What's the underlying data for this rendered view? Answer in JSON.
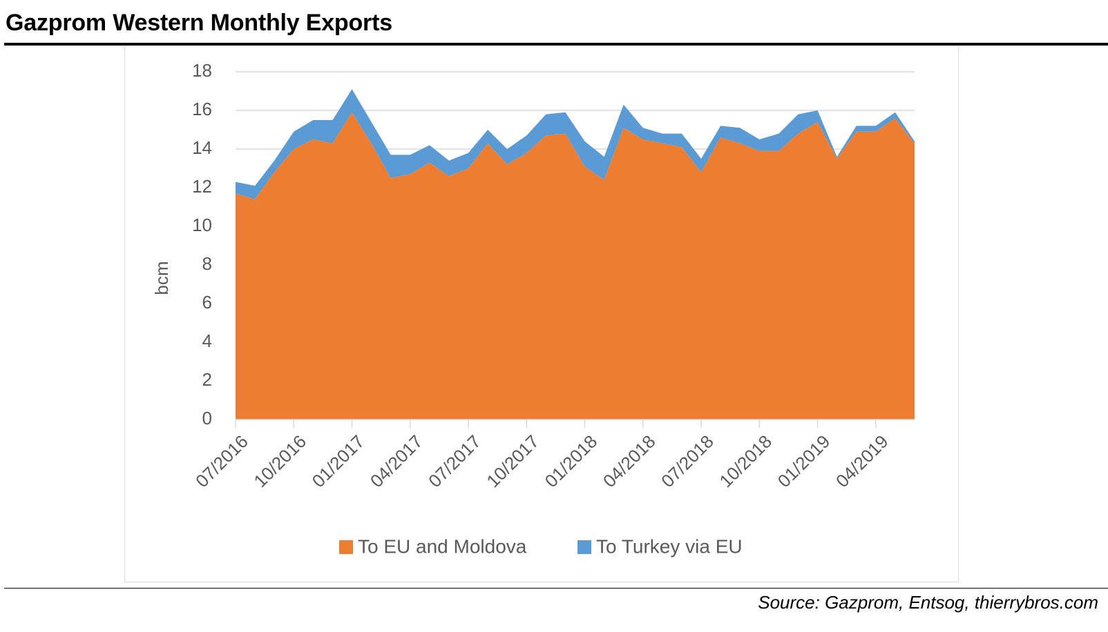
{
  "header": {
    "title": "Gazprom Western Monthly Exports"
  },
  "footer": {
    "source": "Source: Gazprom, Entsog, thierrybros.com"
  },
  "colors": {
    "eu_moldova": "#ed7d31",
    "turkey": "#5b9bd5",
    "grid": "#d9d9d9",
    "axis_text": "#595959"
  },
  "chart_data": {
    "type": "area",
    "stacked": true,
    "title": "Gazprom Western Monthly Exports",
    "xlabel": "",
    "ylabel": "bcm",
    "ylim": [
      0,
      18
    ],
    "yticks": [
      0,
      2,
      4,
      6,
      8,
      10,
      12,
      14,
      16,
      18
    ],
    "grid": true,
    "legend_position": "bottom",
    "x": [
      "07/2016",
      "08/2016",
      "09/2016",
      "10/2016",
      "11/2016",
      "12/2016",
      "01/2017",
      "02/2017",
      "03/2017",
      "04/2017",
      "05/2017",
      "06/2017",
      "07/2017",
      "08/2017",
      "09/2017",
      "10/2017",
      "11/2017",
      "12/2017",
      "01/2018",
      "02/2018",
      "03/2018",
      "04/2018",
      "05/2018",
      "06/2018",
      "07/2018",
      "08/2018",
      "09/2018",
      "10/2018",
      "11/2018",
      "12/2018",
      "01/2019",
      "02/2019",
      "03/2019",
      "04/2019",
      "05/2019",
      "06/2019"
    ],
    "xtick_labels": [
      "07/2016",
      "10/2016",
      "01/2017",
      "04/2017",
      "07/2017",
      "10/2017",
      "01/2018",
      "04/2018",
      "07/2018",
      "10/2018",
      "01/2019",
      "04/2019"
    ],
    "series": [
      {
        "name": "To EU and Moldova",
        "values": [
          11.7,
          11.4,
          12.8,
          14.0,
          14.5,
          14.3,
          15.9,
          14.3,
          12.5,
          12.7,
          13.3,
          12.6,
          13.0,
          14.3,
          13.2,
          13.8,
          14.7,
          14.8,
          13.1,
          12.4,
          15.1,
          14.5,
          14.3,
          14.1,
          12.8,
          14.6,
          14.3,
          13.9,
          13.9,
          14.8,
          15.4,
          13.5,
          14.9,
          14.9,
          15.6,
          14.3
        ]
      },
      {
        "name": "To Turkey via EU",
        "values": [
          0.6,
          0.7,
          0.6,
          0.9,
          1.0,
          1.2,
          1.2,
          1.1,
          1.2,
          1.0,
          0.9,
          0.8,
          0.8,
          0.7,
          0.8,
          0.9,
          1.1,
          1.1,
          1.3,
          1.2,
          1.2,
          0.6,
          0.5,
          0.7,
          0.7,
          0.6,
          0.8,
          0.6,
          0.9,
          1.0,
          0.6,
          0.1,
          0.3,
          0.3,
          0.3,
          0.1
        ]
      }
    ]
  }
}
